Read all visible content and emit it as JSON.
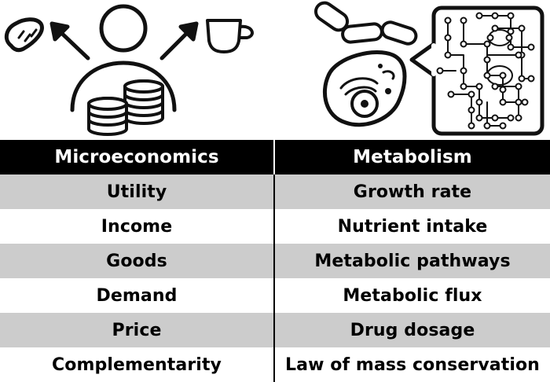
{
  "table": {
    "headers": [
      "Microeconomics",
      "Metabolism"
    ],
    "rows": [
      [
        "Utility",
        "Growth rate"
      ],
      [
        "Income",
        "Nutrient intake"
      ],
      [
        "Goods",
        "Metabolic pathways"
      ],
      [
        "Demand",
        "Metabolic flux"
      ],
      [
        "Price",
        "Drug dosage"
      ],
      [
        "Complementarity",
        "Law of mass conservation"
      ]
    ]
  },
  "icons": {
    "left_panel": [
      "bread-icon",
      "arrow-up-left-icon",
      "person-icon",
      "coin-stacks-icon",
      "arrow-up-right-icon",
      "cup-icon"
    ],
    "right_panel": [
      "bacteria-icon",
      "cell-icon",
      "metabolic-network-icon"
    ]
  }
}
